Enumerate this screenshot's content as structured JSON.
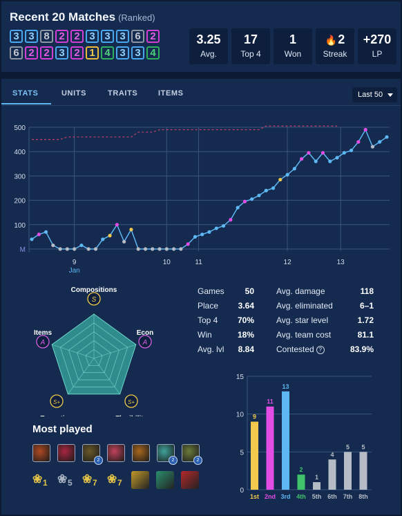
{
  "header": {
    "title": "Recent 20 Matches",
    "subtitle": "(Ranked)",
    "placements_row1": [
      3,
      3,
      8,
      2,
      2,
      3,
      3,
      3,
      6,
      2
    ],
    "placements_row2": [
      6,
      2,
      2,
      3,
      2,
      1,
      4,
      3,
      3,
      4
    ],
    "stats": [
      {
        "value": "3.25",
        "label": "Avg."
      },
      {
        "value": "17",
        "label": "Top 4"
      },
      {
        "value": "1",
        "label": "Won"
      },
      {
        "value": "2",
        "label": "Streak",
        "icon": "fire-icon"
      },
      {
        "value": "+270",
        "label": "LP"
      }
    ]
  },
  "tabs": [
    {
      "label": "STATS",
      "active": true
    },
    {
      "label": "UNITS",
      "active": false
    },
    {
      "label": "TRAITS",
      "active": false
    },
    {
      "label": "ITEMS",
      "active": false
    }
  ],
  "filter": {
    "selected": "Last 50"
  },
  "lp_chart": {
    "type": "line",
    "y_ticks": [
      "500",
      "400",
      "300",
      "200",
      "100",
      "M"
    ],
    "x_ticks": [
      {
        "label": "9",
        "sub": "Jan"
      },
      {
        "label": "10",
        "sub": ""
      },
      {
        "label": "11",
        "sub": ""
      },
      {
        "label": "12",
        "sub": ""
      },
      {
        "label": "13",
        "sub": ""
      }
    ],
    "ylim": [
      0,
      500
    ],
    "lp": [
      40,
      60,
      70,
      15,
      0,
      0,
      0,
      15,
      0,
      0,
      40,
      55,
      100,
      30,
      80,
      0,
      0,
      0,
      0,
      0,
      0,
      0,
      20,
      50,
      60,
      70,
      85,
      95,
      120,
      170,
      195,
      205,
      220,
      240,
      250,
      285,
      305,
      330,
      370,
      395,
      360,
      395,
      360,
      375,
      395,
      405,
      440,
      490,
      420,
      440,
      460
    ],
    "placements": [
      3,
      2,
      3,
      6,
      8,
      8,
      6,
      3,
      8,
      8,
      3,
      1,
      2,
      8,
      1,
      8,
      8,
      8,
      8,
      8,
      8,
      6,
      2,
      3,
      3,
      3,
      3,
      3,
      2,
      3,
      2,
      3,
      3,
      3,
      3,
      1,
      3,
      3,
      2,
      2,
      3,
      2,
      3,
      3,
      3,
      3,
      2,
      2,
      6,
      3,
      3
    ],
    "dashed_peak": [
      450,
      450,
      450,
      450,
      450,
      460,
      460,
      460,
      460,
      460,
      460,
      460,
      460,
      460,
      460,
      480,
      480,
      480,
      490,
      490,
      490,
      490,
      490,
      490,
      490,
      490,
      490,
      490,
      490,
      490,
      490,
      490,
      490,
      505,
      505,
      505,
      505,
      505,
      505,
      505,
      505,
      505,
      505,
      505
    ],
    "colors": {
      "line": "#5db7f2",
      "dashed": "#c2426b",
      "p1": "#f2c94c",
      "p2": "#e34de6",
      "p3": "#5db7f2",
      "p4": "#3fc46c",
      "p5": "#b6bcc6"
    }
  },
  "radar": {
    "axes": [
      {
        "label": "Compositions",
        "grade": "S"
      },
      {
        "label": "Econ",
        "grade": "A"
      },
      {
        "label": "Flexibility",
        "grade": "S+"
      },
      {
        "label": "Execution",
        "grade": "S+"
      },
      {
        "label": "Items",
        "grade": "A"
      }
    ],
    "grade_colors": {
      "S": "#f2c94c",
      "S+": "#f2c94c",
      "A": "#d35ee0"
    }
  },
  "summary_left": [
    {
      "label": "Games",
      "value": "50"
    },
    {
      "label": "Place",
      "value": "3.64"
    },
    {
      "label": "Top 4",
      "value": "70%"
    },
    {
      "label": "Win",
      "value": "18%"
    },
    {
      "label": "Avg. lvl",
      "value": "8.84"
    }
  ],
  "summary_right": [
    {
      "label": "Avg. damage",
      "value": "118"
    },
    {
      "label": "Avg. eliminated",
      "value": "6–1"
    },
    {
      "label": "Avg. star level",
      "value": "1.72"
    },
    {
      "label": "Avg. team cost",
      "value": "81.1"
    },
    {
      "label": "Contested",
      "value": "83.9%",
      "help_icon": "help-icon"
    }
  ],
  "most_played": {
    "title": "Most played",
    "champions": [
      {
        "icon": "champion-portrait-icon",
        "color": "#b04a22",
        "star": false
      },
      {
        "icon": "champion-portrait-icon",
        "color": "#a8253f",
        "star": false
      },
      {
        "icon": "champion-portrait-icon",
        "color": "#6a5a2a",
        "star": true
      },
      {
        "icon": "champion-portrait-icon",
        "color": "#c0425a",
        "star": false
      },
      {
        "icon": "champion-portrait-icon",
        "color": "#a8671d",
        "star": false
      },
      {
        "icon": "champion-portrait-icon",
        "color": "#3fa39a",
        "star": true
      },
      {
        "icon": "champion-portrait-icon",
        "color": "#6a7a3a",
        "star": true
      }
    ],
    "star_badge": "2",
    "traits": [
      {
        "icon": "trait-icon",
        "count": "1",
        "gold": true
      },
      {
        "icon": "trait-icon",
        "count": "5",
        "gold": false
      },
      {
        "icon": "trait-icon",
        "count": "7",
        "gold": true
      },
      {
        "icon": "trait-icon",
        "count": "7",
        "gold": true
      }
    ],
    "items": [
      {
        "icon": "item-icon",
        "color": "#c29a2a"
      },
      {
        "icon": "item-icon",
        "color": "#2c8f6e"
      },
      {
        "icon": "item-icon",
        "color": "#b5282c"
      }
    ]
  },
  "placement_chart": {
    "type": "bar",
    "categories": [
      "1st",
      "2nd",
      "3rd",
      "4th",
      "5th",
      "6th",
      "7th",
      "8th"
    ],
    "values": [
      9,
      11,
      13,
      2,
      1,
      4,
      5,
      5
    ],
    "ylim": [
      0,
      15
    ],
    "y_ticks": [
      0,
      5,
      10,
      15
    ],
    "colors": [
      "#f2c94c",
      "#e34de6",
      "#5db7f2",
      "#3fc46c",
      "#b6bcc6",
      "#b6bcc6",
      "#b6bcc6",
      "#b6bcc6"
    ]
  }
}
